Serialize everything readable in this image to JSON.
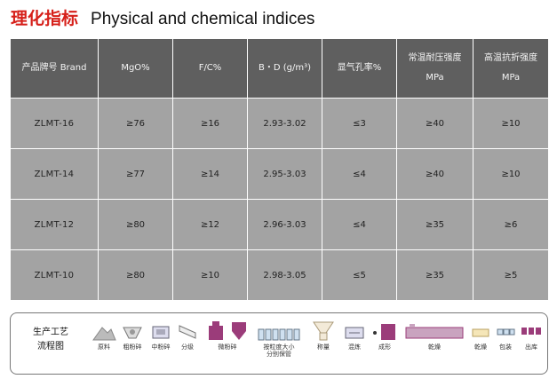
{
  "title": {
    "cn": "理化指标",
    "en": "Physical and chemical indices"
  },
  "table": {
    "headers": [
      {
        "line1": "产品牌号 Brand",
        "line2": ""
      },
      {
        "line1": "MgO%",
        "line2": ""
      },
      {
        "line1": "F/C%",
        "line2": ""
      },
      {
        "line1": "B・D (g/m³)",
        "line2": ""
      },
      {
        "line1": "显气孔率%",
        "line2": ""
      },
      {
        "line1": "常温耐压强度",
        "line2": "MPa"
      },
      {
        "line1": "高温抗折强度",
        "line2": "MPa"
      }
    ],
    "rows": [
      [
        "ZLMT-16",
        "≥76",
        "≥16",
        "2.93-3.02",
        "≤3",
        "≥40",
        "≥10"
      ],
      [
        "ZLMT-14",
        "≥77",
        "≥14",
        "2.95-3.03",
        "≤4",
        "≥40",
        "≥10"
      ],
      [
        "ZLMT-12",
        "≥80",
        "≥12",
        "2.96-3.03",
        "≤4",
        "≥35",
        "≥6"
      ],
      [
        "ZLMT-10",
        "≥80",
        "≥10",
        "2.98-3.05",
        "≤5",
        "≥35",
        "≥5"
      ]
    ]
  },
  "flow": {
    "label_line1": "生产工艺",
    "label_line2": "流程图",
    "steps": [
      {
        "label": "原料",
        "icon": "raw-material-pile-icon"
      },
      {
        "label": "粗粉碎",
        "icon": "coarse-crusher-icon"
      },
      {
        "label": "中粉碎",
        "icon": "medium-crusher-icon"
      },
      {
        "label": "分级",
        "icon": "classifier-icon"
      },
      {
        "label": "微粉碎",
        "icon": "fine-grinder-icon"
      },
      {
        "label": "按粒度大小",
        "label2": "分别保管",
        "icon": "storage-silos-icon"
      },
      {
        "label": "称量",
        "icon": "weighing-hopper-icon"
      },
      {
        "label": "混炼",
        "icon": "mixer-icon"
      },
      {
        "label": "成形",
        "icon": "press-icon"
      },
      {
        "label": "乾燥",
        "icon": "kiln-icon"
      },
      {
        "label": "乾燥",
        "icon": "dryer-icon"
      },
      {
        "label": "包装",
        "icon": "packaging-icon"
      },
      {
        "label": "出库",
        "icon": "shipping-icon"
      }
    ]
  },
  "colors": {
    "title_cn": "#d6201a",
    "header_bg": "#5f5f5f",
    "row_bg": "#a3a3a3",
    "icon_accent": "#9b3c7a"
  }
}
